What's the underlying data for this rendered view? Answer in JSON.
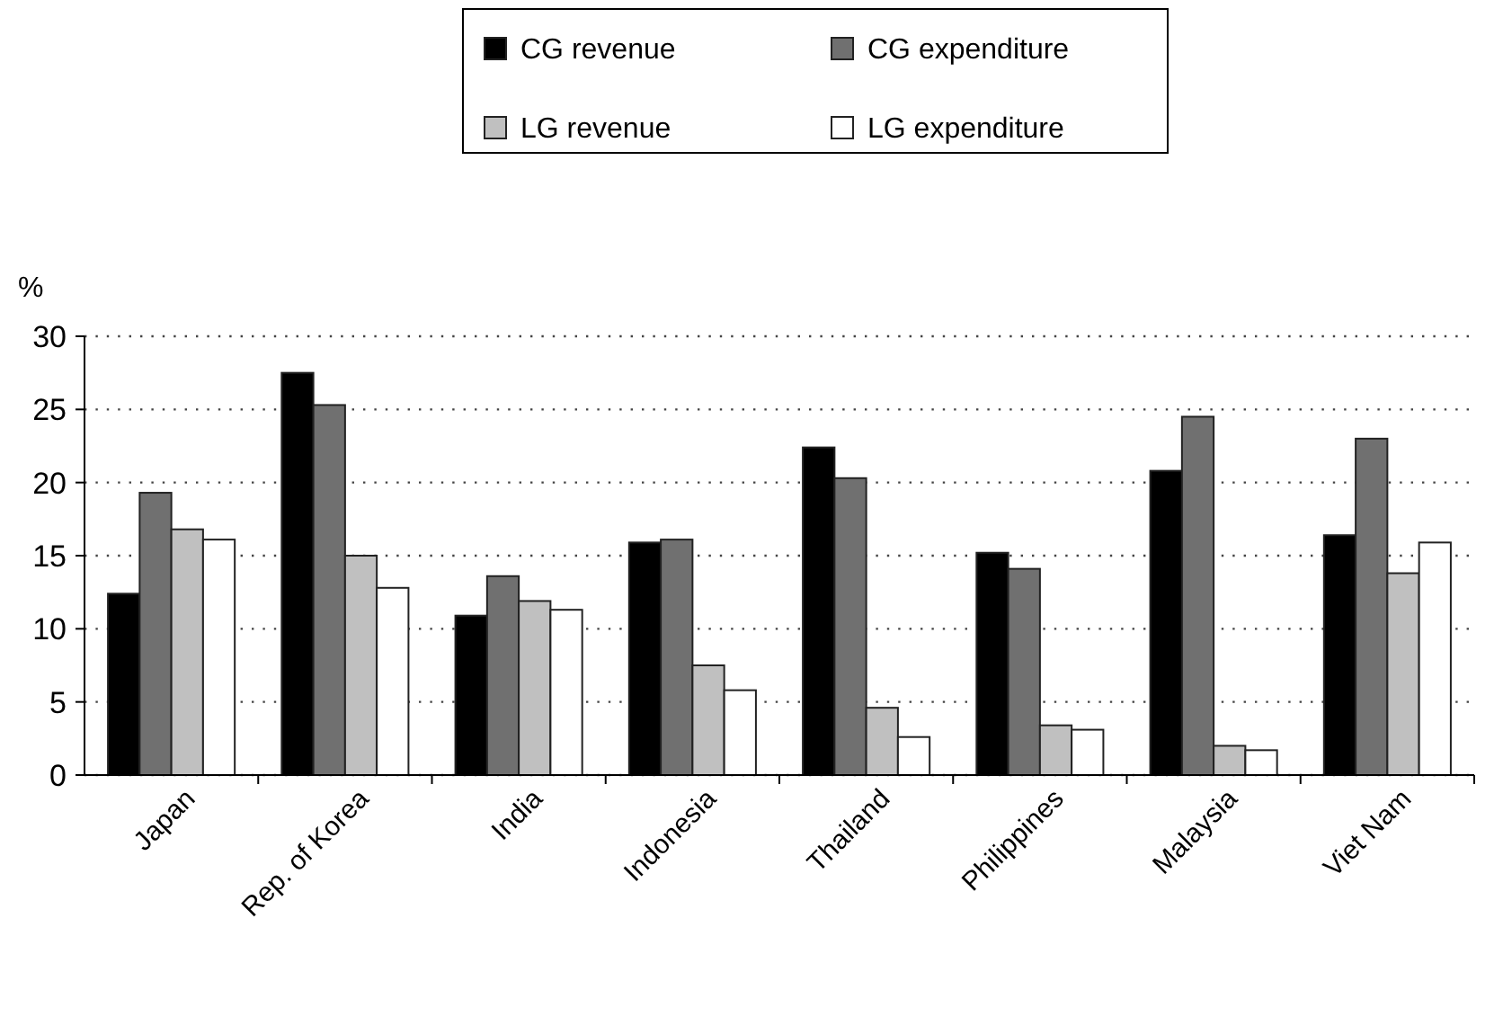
{
  "chart_data": {
    "type": "bar",
    "ylabel": "%",
    "categories": [
      "Japan",
      "Rep. of Korea",
      "India",
      "Indonesia",
      "Thailand",
      "Philippines",
      "Malaysia",
      "Viet Nam"
    ],
    "series": [
      {
        "name": "CG revenue",
        "color": "#000000",
        "values": [
          12.4,
          27.5,
          10.9,
          15.9,
          22.4,
          15.2,
          20.8,
          16.4
        ]
      },
      {
        "name": "CG expenditure",
        "color": "#707070",
        "values": [
          19.3,
          25.3,
          13.6,
          16.1,
          20.3,
          14.1,
          24.5,
          23.0
        ]
      },
      {
        "name": "LG revenue",
        "color": "#c0c0c0",
        "values": [
          16.8,
          15.0,
          11.9,
          7.5,
          4.6,
          3.4,
          2.0,
          13.8
        ]
      },
      {
        "name": "LG expenditure",
        "color": "#ffffff",
        "values": [
          16.1,
          12.8,
          11.3,
          5.8,
          2.6,
          3.1,
          1.7,
          15.9
        ]
      }
    ],
    "ylim": [
      0,
      30
    ],
    "yticks": [
      0,
      5,
      10,
      15,
      20,
      25,
      30
    ],
    "grid": "y",
    "legend": "top"
  }
}
